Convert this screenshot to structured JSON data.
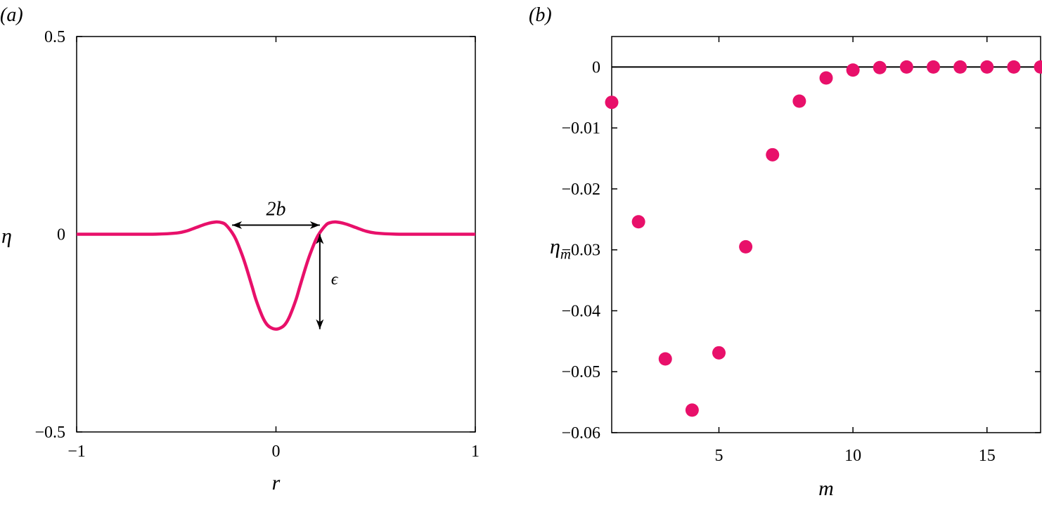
{
  "colors": {
    "series": "#e8106a",
    "axis": "#000000",
    "background": "#ffffff"
  },
  "chart_data": [
    {
      "type": "line",
      "panel_label": "(a)",
      "xlabel": "r",
      "ylabel": "η",
      "xlim": [
        -1,
        1
      ],
      "ylim": [
        -0.5,
        0.5
      ],
      "xticks": [
        -1,
        0,
        1
      ],
      "xtick_labels": [
        "−1",
        "0",
        "1"
      ],
      "yticks": [
        -0.5,
        0,
        0.5
      ],
      "ytick_labels": [
        "−0.5",
        "0",
        "0.5"
      ],
      "grid": false,
      "legend": "none",
      "series": [
        {
          "x": [
            -1,
            -0.8,
            -0.6,
            -0.5,
            -0.45,
            -0.4,
            -0.35,
            -0.3,
            -0.27,
            -0.25,
            -0.22,
            -0.2,
            -0.17,
            -0.15,
            -0.12,
            -0.1,
            -0.07,
            -0.05,
            -0.03,
            0,
            0.03,
            0.05,
            0.07,
            0.1,
            0.12,
            0.15,
            0.17,
            0.2,
            0.22,
            0.25,
            0.27,
            0.3,
            0.35,
            0.4,
            0.45,
            0.5,
            0.6,
            0.8,
            1
          ],
          "y": [
            0,
            0,
            0.0003,
            0.003,
            0.008,
            0.017,
            0.026,
            0.031,
            0.029,
            0.023,
            0.004,
            -0.014,
            -0.052,
            -0.082,
            -0.132,
            -0.166,
            -0.206,
            -0.225,
            -0.235,
            -0.24,
            -0.235,
            -0.225,
            -0.206,
            -0.166,
            -0.132,
            -0.082,
            -0.052,
            -0.014,
            0.004,
            0.023,
            0.029,
            0.031,
            0.026,
            0.017,
            0.008,
            0.003,
            0.0003,
            0,
            0
          ]
        }
      ],
      "annotations": [
        {
          "label": "2b",
          "kind": "double-arrow",
          "from": [
            -0.22,
            0.023
          ],
          "to": [
            0.22,
            0.023
          ]
        },
        {
          "label": "ϵ",
          "kind": "double-arrow",
          "from": [
            0.22,
            0.0
          ],
          "to": [
            0.22,
            -0.24
          ]
        }
      ]
    },
    {
      "type": "scatter",
      "panel_label": "(b)",
      "xlabel": "m",
      "ylabel": "η",
      "ylabel_sub": "m",
      "xlim": [
        1,
        17
      ],
      "ylim": [
        -0.06,
        0.005
      ],
      "xticks": [
        5,
        10,
        15
      ],
      "xtick_labels": [
        "5",
        "10",
        "15"
      ],
      "yticks": [
        0,
        -0.01,
        -0.02,
        -0.03,
        -0.04,
        -0.05,
        -0.06
      ],
      "ytick_labels": [
        "0",
        "−0.01",
        "−0.02",
        "−0.03",
        "−0.04",
        "−0.05",
        "−0.06"
      ],
      "grid": false,
      "legend": "none",
      "reference_line_y": 0,
      "series": [
        {
          "x": [
            1,
            2,
            3,
            4,
            5,
            6,
            7,
            8,
            9,
            10,
            11,
            12,
            13,
            14,
            15,
            16,
            17
          ],
          "y": [
            -0.0058,
            -0.0254,
            -0.0479,
            -0.0563,
            -0.0469,
            -0.0295,
            -0.0144,
            -0.0056,
            -0.0018,
            -0.0005,
            -0.0001,
            0,
            0,
            0,
            0,
            0,
            0
          ]
        }
      ]
    }
  ]
}
